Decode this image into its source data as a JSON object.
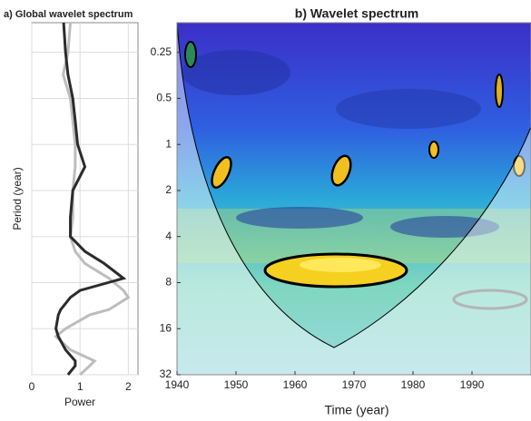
{
  "chart_data": [
    {
      "type": "line",
      "title": "a) Global wavelet spectrum",
      "xlabel": "Power",
      "ylabel": "Period (year)",
      "periods": [
        0.16,
        0.25,
        0.35,
        0.5,
        0.7,
        1,
        1.4,
        2,
        3,
        4,
        5,
        6,
        7.5,
        9,
        10,
        12,
        13,
        16,
        18,
        22,
        26,
        28,
        32
      ],
      "series": [
        {
          "color": "#bdbdbd",
          "values": [
            0.8,
            0.75,
            0.65,
            0.8,
            0.85,
            0.9,
            0.9,
            0.85,
            0.85,
            0.8,
            0.9,
            1.1,
            1.6,
            1.9,
            2.0,
            1.6,
            1.2,
            0.7,
            0.5,
            0.8,
            1.3,
            1.2,
            1.0
          ]
        },
        {
          "color": "#2b2b2b",
          "values": [
            0.66,
            0.7,
            0.75,
            0.85,
            0.9,
            0.95,
            1.1,
            0.85,
            0.8,
            0.8,
            1.1,
            1.5,
            1.9,
            1.0,
            0.8,
            0.6,
            0.55,
            0.5,
            0.55,
            0.7,
            0.9,
            0.9,
            0.75
          ]
        }
      ],
      "xlim": [
        0,
        2.2
      ],
      "xticks": [
        0,
        1,
        2
      ],
      "ylim": [
        0.16,
        32
      ],
      "log_y": true,
      "y_reversed": true,
      "grid": true
    },
    {
      "type": "heatmap",
      "title": "b) Wavelet spectrum",
      "xlabel": "Time (year)",
      "xlim": [
        1940,
        2000
      ],
      "xticks": [
        1940,
        1950,
        1960,
        1970,
        1980,
        1990
      ],
      "ylim": [
        0.16,
        32
      ],
      "yticks": [
        0.25,
        0.5,
        1,
        2,
        4,
        8,
        16,
        32
      ],
      "log_y": true,
      "y_reversed": true
    }
  ]
}
